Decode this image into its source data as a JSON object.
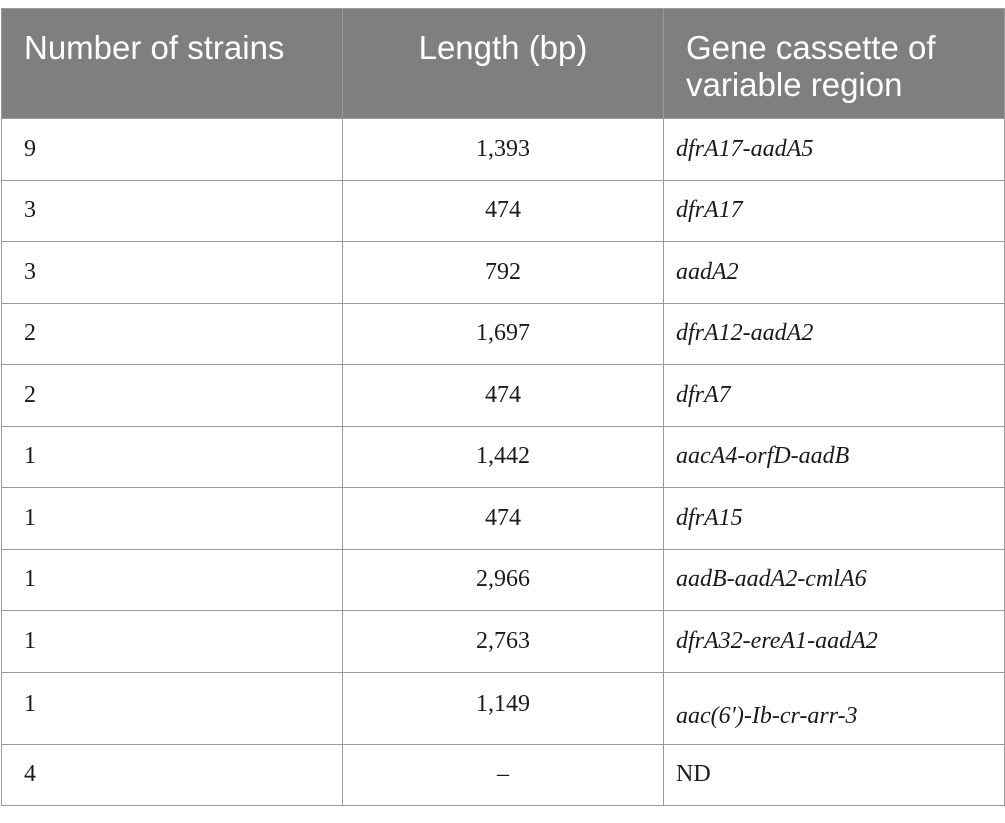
{
  "table": {
    "headers": [
      "Number of strains",
      "Length (bp)",
      "Gene cassette of variable region"
    ],
    "rows": [
      {
        "strains": "9",
        "length": "1,393",
        "cassette": "dfrA17-aadA5",
        "italic": true
      },
      {
        "strains": "3",
        "length": "474",
        "cassette": "dfrA17",
        "italic": true
      },
      {
        "strains": "3",
        "length": "792",
        "cassette": "aadA2",
        "italic": true
      },
      {
        "strains": "2",
        "length": "1,697",
        "cassette": "dfrA12-aadA2",
        "italic": true
      },
      {
        "strains": "2",
        "length": "474",
        "cassette": "dfrA7",
        "italic": true
      },
      {
        "strains": "1",
        "length": "1,442",
        "cassette": "aacA4-orfD-aadB",
        "italic": true
      },
      {
        "strains": "1",
        "length": "474",
        "cassette": "dfrA15",
        "italic": true
      },
      {
        "strains": "1",
        "length": "2,966",
        "cassette": "aadB-aadA2-cmlA6",
        "italic": true
      },
      {
        "strains": "1",
        "length": "2,763",
        "cassette": "dfrA32-ereA1-aadA2",
        "italic": true
      },
      {
        "strains": "1",
        "length": "1,149",
        "cassette": "aac(6′)-Ib-cr-arr-3",
        "italic": true
      },
      {
        "strains": "4",
        "length": "–",
        "cassette": "ND",
        "italic": false
      }
    ]
  }
}
